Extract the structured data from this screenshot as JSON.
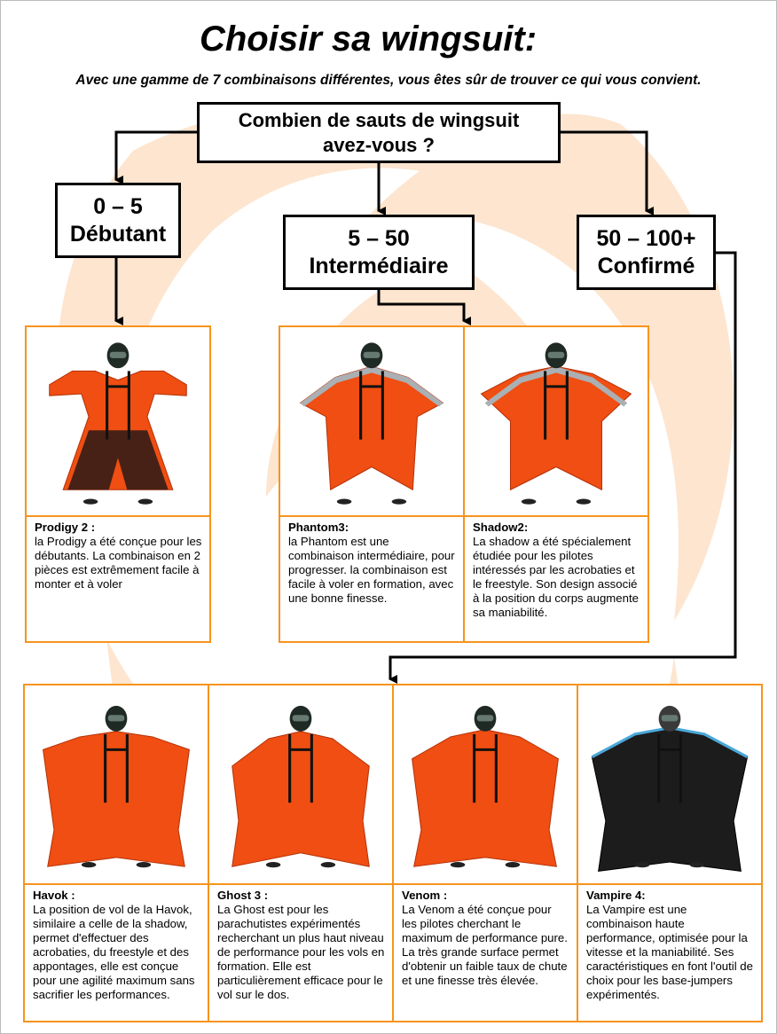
{
  "title": "Choisir sa wingsuit:",
  "subtitle": "Avec une gamme de 7 combinaisons différentes, vous êtes sûr de trouver ce qui vous convient.",
  "question": {
    "line1": "Combien de sauts de wingsuit",
    "line2": "avez-vous ?"
  },
  "levels": [
    {
      "range": "0 – 5",
      "label": "Débutant"
    },
    {
      "range": "5 – 50",
      "label": "Intermédiaire"
    },
    {
      "range": "50 – 100+",
      "label": "Confirmé"
    }
  ],
  "colors": {
    "accent": "#f7941d",
    "suit": "#f04e12",
    "background_swirl": "#fde5cf"
  },
  "suits": [
    {
      "name": "Prodigy 2 :",
      "desc": "la Prodigy a été conçue pour les débutants. La combinaison en 2 pièces est extrêmement facile à monter et à voler",
      "style": "prodigy"
    },
    {
      "name": "Phantom3:",
      "desc": "la Phantom est une combinaison intermédiaire, pour progresser. la combinaison est facile à voler en formation, avec une bonne finesse.",
      "style": "phantom"
    },
    {
      "name": "Shadow2:",
      "desc": "La shadow a été spécialement étudiée pour les pilotes intéressés par les acrobaties et le freestyle. Son design associé à la position du corps augmente sa maniabilité.",
      "style": "shadow"
    },
    {
      "name": "Havok :",
      "desc": "La position de vol de la Havok, similaire a celle de la shadow, permet d'effectuer des acrobaties, du freestyle et des appontages, elle est conçue pour une agilité maximum sans sacrifier les performances.",
      "style": "havok"
    },
    {
      "name": "Ghost 3 :",
      "desc": "La Ghost est pour les parachutistes expérimentés recherchant un plus haut niveau de performance pour les vols en formation. Elle est particulièrement efficace pour le vol sur le dos.",
      "style": "ghost"
    },
    {
      "name": "Venom :",
      "desc": "La Venom a été conçue pour les pilotes cherchant le maximum de performance pure. La très grande surface permet d'obtenir un faible taux de chute et une finesse très élevée.",
      "style": "venom"
    },
    {
      "name": "Vampire 4:",
      "desc": "La Vampire est une combinaison haute performance, optimisée pour la vitesse et la maniabilité. Ses caractéristiques en font l'outil de choix pour les base-jumpers expérimentés.",
      "style": "vampire"
    }
  ]
}
